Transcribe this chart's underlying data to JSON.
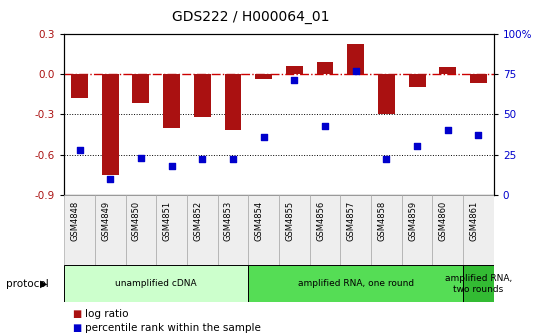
{
  "title": "GDS222 / H000064_01",
  "samples": [
    "GSM4848",
    "GSM4849",
    "GSM4850",
    "GSM4851",
    "GSM4852",
    "GSM4853",
    "GSM4854",
    "GSM4855",
    "GSM4856",
    "GSM4857",
    "GSM4858",
    "GSM4859",
    "GSM4860",
    "GSM4861"
  ],
  "log_ratio": [
    -0.18,
    -0.75,
    -0.22,
    -0.4,
    -0.32,
    -0.42,
    -0.04,
    0.06,
    0.09,
    0.22,
    -0.3,
    -0.1,
    0.05,
    -0.07
  ],
  "percentile": [
    28,
    10,
    23,
    18,
    22,
    22,
    36,
    71,
    43,
    77,
    22,
    30,
    40,
    37
  ],
  "bar_color": "#aa1111",
  "dot_color": "#0000cc",
  "zero_line_color": "#cc0000",
  "bg_color": "#ffffff",
  "ylim_left": [
    -0.9,
    0.3
  ],
  "ylim_right": [
    0,
    100
  ],
  "yticks_left": [
    -0.9,
    -0.6,
    -0.3,
    0.0,
    0.3
  ],
  "yticks_right": [
    0,
    25,
    50,
    75,
    100
  ],
  "ytick_labels_right": [
    "0",
    "25",
    "50",
    "75",
    "100%"
  ],
  "protocol_groups": [
    {
      "label": "unamplified cDNA",
      "start": 0,
      "end": 5,
      "color": "#ccffcc"
    },
    {
      "label": "amplified RNA, one round",
      "start": 6,
      "end": 12,
      "color": "#55dd55"
    },
    {
      "label": "amplified RNA,\ntwo rounds",
      "start": 13,
      "end": 13,
      "color": "#33bb33"
    }
  ],
  "legend_items": [
    {
      "label": "log ratio",
      "color": "#aa1111"
    },
    {
      "label": "percentile rank within the sample",
      "color": "#0000cc"
    }
  ],
  "protocol_label": "protocol",
  "bar_width": 0.55
}
